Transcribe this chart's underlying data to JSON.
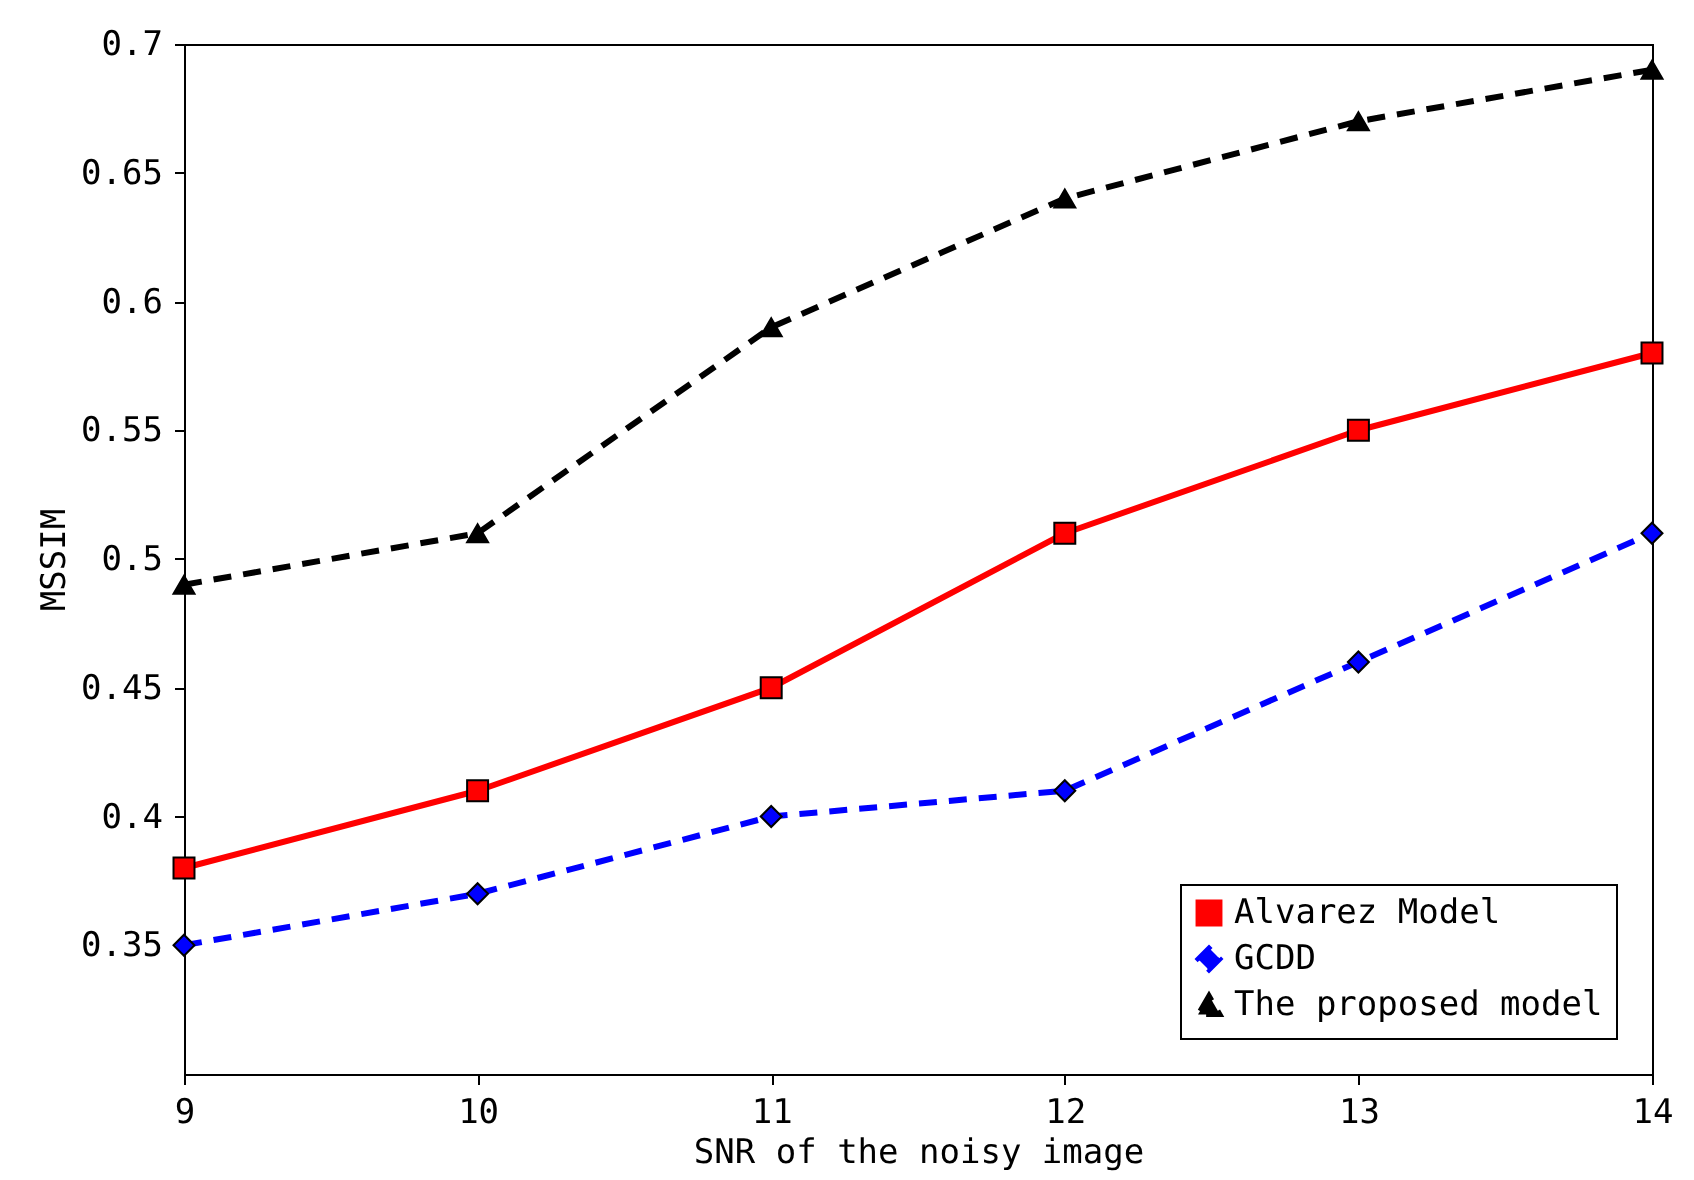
{
  "chart_data": {
    "type": "line",
    "xlabel": "SNR of the noisy image",
    "ylabel": "MSSIM",
    "x": [
      9,
      10,
      11,
      12,
      13,
      14
    ],
    "series": [
      {
        "name": "Alvarez Model",
        "color": "#ff0000",
        "line_style": "solid",
        "marker": "square",
        "values": [
          0.38,
          0.41,
          0.45,
          0.51,
          0.55,
          0.58
        ]
      },
      {
        "name": "GCDD",
        "color": "#0000ff",
        "line_style": "dashed",
        "marker": "diamond",
        "values": [
          0.35,
          0.37,
          0.4,
          0.41,
          0.46,
          0.51
        ]
      },
      {
        "name": "The proposed model",
        "color": "#000000",
        "line_style": "dashed",
        "marker": "triangle",
        "values": [
          0.49,
          0.51,
          0.59,
          0.64,
          0.67,
          0.69
        ]
      }
    ],
    "xlim": [
      9,
      14
    ],
    "xticks": [
      9,
      10,
      11,
      12,
      13,
      14
    ],
    "ylim": [
      0.3,
      0.7
    ],
    "yticks": [
      0.35,
      0.4,
      0.45,
      0.5,
      0.55,
      0.6,
      0.65,
      0.7
    ],
    "grid": false,
    "legend": "bottom right"
  }
}
